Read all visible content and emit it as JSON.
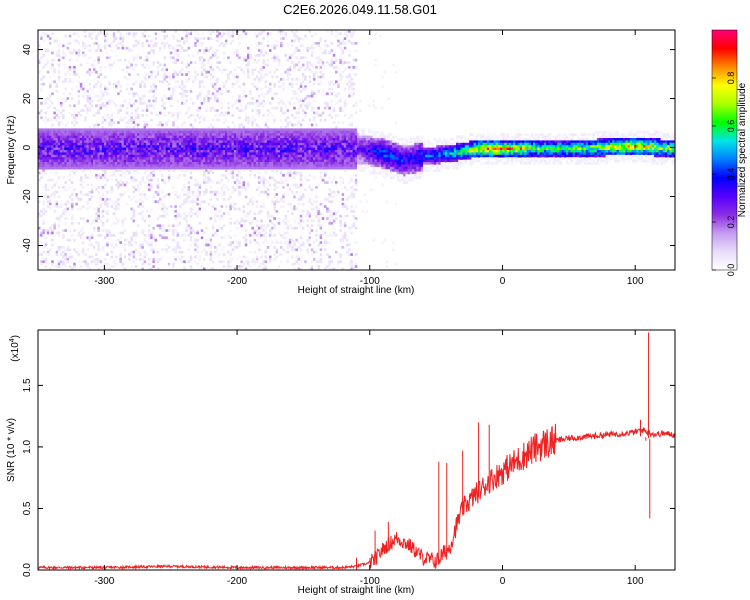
{
  "figure_title": "C2E6.2026.049.11.58.G01",
  "colors": {
    "snr_line": "#ee2222",
    "axis": "#000000",
    "colormap": [
      "#ffffff",
      "#e6dcfa",
      "#c49cf0",
      "#8a2be2",
      "#5500ff",
      "#0000ff",
      "#0080ff",
      "#00e5e5",
      "#00ff00",
      "#aaff00",
      "#ffff00",
      "#ff8800",
      "#ff0000",
      "#ff0077"
    ]
  },
  "chart_data": [
    {
      "type": "heatmap",
      "title": "",
      "xlabel": "Height of straight line (km)",
      "ylabel": "Frequency (Hz)",
      "xlim": [
        -350,
        130
      ],
      "ylim": [
        -50,
        48
      ],
      "x_ticks": [
        -300,
        -200,
        -100,
        0,
        100
      ],
      "y_ticks": [
        -40,
        -20,
        0,
        20,
        40
      ],
      "colorbar": {
        "label": "Normalized spectral amplitude",
        "range": [
          0,
          1
        ],
        "ticks": [
          "0.0",
          "0.2",
          "0.4",
          "0.6",
          "0.8"
        ]
      },
      "ridge_frequency_hz": [
        {
          "x": -350,
          "y": 0
        },
        {
          "x": -110,
          "y": 0
        },
        {
          "x": -90,
          "y": -2
        },
        {
          "x": -75,
          "y": -5
        },
        {
          "x": -60,
          "y": -3
        },
        {
          "x": -40,
          "y": -2
        },
        {
          "x": -20,
          "y": 0
        },
        {
          "x": 0,
          "y": 0
        },
        {
          "x": 50,
          "y": 0
        },
        {
          "x": 100,
          "y": 1
        },
        {
          "x": 130,
          "y": 0
        }
      ],
      "amplitude_along_ridge": [
        {
          "x": -350,
          "value": 0.25
        },
        {
          "x": -110,
          "value": 0.28
        },
        {
          "x": -90,
          "value": 0.45
        },
        {
          "x": -70,
          "value": 0.4
        },
        {
          "x": -40,
          "value": 0.55
        },
        {
          "x": -20,
          "value": 0.8
        },
        {
          "x": 0,
          "value": 0.9
        },
        {
          "x": 30,
          "value": 0.65
        },
        {
          "x": 70,
          "value": 0.7
        },
        {
          "x": 95,
          "value": 0.85
        },
        {
          "x": 130,
          "value": 0.7
        }
      ]
    },
    {
      "type": "line",
      "title": "",
      "xlabel": "Height of straight line (km)",
      "ylabel": "SNR (10 * v/v)",
      "scale_label": "(x10",
      "scale_exponent": "4",
      "xlim": [
        -350,
        130
      ],
      "ylim": [
        0,
        1.95
      ],
      "x_ticks": [
        -300,
        -200,
        -100,
        0,
        100
      ],
      "y_ticks": [
        "0.0",
        "0.5",
        "1.0",
        "1.5"
      ],
      "series": [
        {
          "x": [
            -350,
            -300,
            -250,
            -200,
            -150,
            -120,
            -110,
            -100,
            -95,
            -90,
            -80,
            -70,
            -60,
            -50,
            -40,
            -35,
            -30,
            -20,
            -10,
            0,
            10,
            20,
            30,
            40,
            50,
            60,
            70,
            80,
            90,
            100,
            105,
            110,
            115,
            120,
            130
          ],
          "values": [
            0.02,
            0.02,
            0.03,
            0.02,
            0.02,
            0.02,
            0.03,
            0.06,
            0.1,
            0.17,
            0.26,
            0.2,
            0.1,
            0.07,
            0.18,
            0.35,
            0.5,
            0.62,
            0.72,
            0.8,
            0.88,
            0.96,
            1.02,
            1.05,
            1.07,
            1.08,
            1.09,
            1.1,
            1.11,
            1.12,
            1.14,
            1.12,
            1.1,
            1.11,
            1.1
          ]
        }
      ],
      "spikes": [
        {
          "x": -110,
          "value": 0.1
        },
        {
          "x": -96,
          "value": 0.32
        },
        {
          "x": -86,
          "value": 0.39
        },
        {
          "x": -48,
          "value": 0.88
        },
        {
          "x": -42,
          "value": 0.87
        },
        {
          "x": -30,
          "value": 0.97
        },
        {
          "x": -18,
          "value": 1.2
        },
        {
          "x": -10,
          "value": 1.18
        },
        {
          "x": 104,
          "value": 1.22
        },
        {
          "x": 108,
          "value": 1.05
        },
        {
          "x": 110,
          "value": 1.93
        },
        {
          "x": 111,
          "value": 0.42
        }
      ]
    }
  ]
}
